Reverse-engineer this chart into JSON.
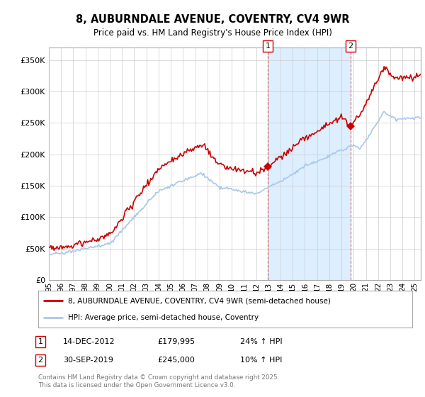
{
  "title": "8, AUBURNDALE AVENUE, COVENTRY, CV4 9WR",
  "subtitle": "Price paid vs. HM Land Registry's House Price Index (HPI)",
  "ylim": [
    0,
    370000
  ],
  "yticks": [
    0,
    50000,
    100000,
    150000,
    200000,
    250000,
    300000,
    350000
  ],
  "xlim_start": 1995.0,
  "xlim_end": 2025.5,
  "red_color": "#cc0000",
  "blue_color": "#aac8e8",
  "marker1_x": 2012.96,
  "marker1_y": 179995,
  "marker1_label": "1",
  "marker1_date": "14-DEC-2012",
  "marker1_price": "£179,995",
  "marker1_hpi": "24% ↑ HPI",
  "marker2_x": 2019.75,
  "marker2_y": 245000,
  "marker2_label": "2",
  "marker2_date": "30-SEP-2019",
  "marker2_price": "£245,000",
  "marker2_hpi": "10% ↑ HPI",
  "legend_line1": "8, AUBURNDALE AVENUE, COVENTRY, CV4 9WR (semi-detached house)",
  "legend_line2": "HPI: Average price, semi-detached house, Coventry",
  "footnote": "Contains HM Land Registry data © Crown copyright and database right 2025.\nThis data is licensed under the Open Government Licence v3.0.",
  "shaded_region_color": "#ddeeff",
  "grid_color": "#cccccc"
}
